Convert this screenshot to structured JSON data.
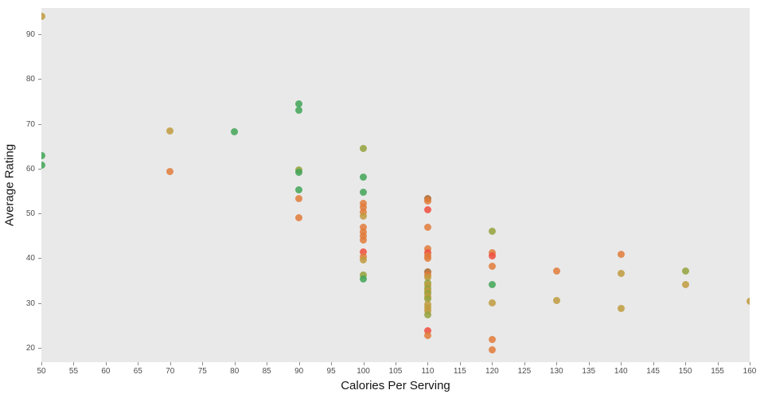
{
  "chart_data": {
    "type": "scatter",
    "title": "",
    "xlabel": "Calories Per Serving",
    "ylabel": "Average Rating",
    "xlim": [
      50,
      160
    ],
    "ylim": [
      16.8,
      95.9
    ],
    "xticks": [
      50,
      55,
      60,
      65,
      70,
      75,
      80,
      85,
      90,
      95,
      100,
      105,
      110,
      115,
      120,
      125,
      130,
      135,
      140,
      145,
      150,
      155,
      160
    ],
    "yticks": [
      20,
      30,
      40,
      50,
      60,
      70,
      80,
      90
    ],
    "grid": false,
    "legend": "none",
    "plot_background": "#e9e9e9",
    "figure_background": "#ffffff",
    "colors": {
      "green": "#41a556",
      "orange": "#e07b3a",
      "tan": "#bf9b3e",
      "red": "#ef4e3e",
      "olive": "#94a23c",
      "brown": "#ab672c"
    },
    "points": [
      {
        "x": 50,
        "y": 94.0,
        "c": "tan"
      },
      {
        "x": 50,
        "y": 63.0,
        "c": "green"
      },
      {
        "x": 50,
        "y": 60.8,
        "c": "green"
      },
      {
        "x": 70,
        "y": 68.4,
        "c": "tan"
      },
      {
        "x": 70,
        "y": 59.4,
        "c": "orange"
      },
      {
        "x": 80,
        "y": 68.2,
        "c": "green"
      },
      {
        "x": 90,
        "y": 74.5,
        "c": "green"
      },
      {
        "x": 90,
        "y": 73.0,
        "c": "green"
      },
      {
        "x": 90,
        "y": 59.7,
        "c": "olive"
      },
      {
        "x": 90,
        "y": 59.2,
        "c": "green"
      },
      {
        "x": 90,
        "y": 55.3,
        "c": "green"
      },
      {
        "x": 90,
        "y": 53.3,
        "c": "orange"
      },
      {
        "x": 90,
        "y": 49.1,
        "c": "orange"
      },
      {
        "x": 100,
        "y": 64.5,
        "c": "olive"
      },
      {
        "x": 100,
        "y": 58.1,
        "c": "green"
      },
      {
        "x": 100,
        "y": 54.8,
        "c": "green"
      },
      {
        "x": 100,
        "y": 52.3,
        "c": "orange"
      },
      {
        "x": 100,
        "y": 51.3,
        "c": "orange"
      },
      {
        "x": 100,
        "y": 50.3,
        "c": "orange"
      },
      {
        "x": 100,
        "y": 49.5,
        "c": "tan"
      },
      {
        "x": 100,
        "y": 46.9,
        "c": "orange"
      },
      {
        "x": 100,
        "y": 45.8,
        "c": "orange"
      },
      {
        "x": 100,
        "y": 44.9,
        "c": "orange"
      },
      {
        "x": 100,
        "y": 44.0,
        "c": "orange"
      },
      {
        "x": 100,
        "y": 41.5,
        "c": "red"
      },
      {
        "x": 100,
        "y": 40.4,
        "c": "orange"
      },
      {
        "x": 100,
        "y": 39.7,
        "c": "tan"
      },
      {
        "x": 100,
        "y": 36.2,
        "c": "olive"
      },
      {
        "x": 100,
        "y": 35.4,
        "c": "green"
      },
      {
        "x": 110,
        "y": 53.4,
        "c": "brown"
      },
      {
        "x": 110,
        "y": 52.8,
        "c": "orange"
      },
      {
        "x": 110,
        "y": 50.8,
        "c": "red"
      },
      {
        "x": 110,
        "y": 47.0,
        "c": "orange"
      },
      {
        "x": 110,
        "y": 42.2,
        "c": "orange"
      },
      {
        "x": 110,
        "y": 41.3,
        "c": "red"
      },
      {
        "x": 110,
        "y": 40.6,
        "c": "orange"
      },
      {
        "x": 110,
        "y": 40.0,
        "c": "orange"
      },
      {
        "x": 110,
        "y": 36.9,
        "c": "brown"
      },
      {
        "x": 110,
        "y": 36.3,
        "c": "orange"
      },
      {
        "x": 110,
        "y": 35.7,
        "c": "tan"
      },
      {
        "x": 110,
        "y": 34.5,
        "c": "olive"
      },
      {
        "x": 110,
        "y": 34.0,
        "c": "tan"
      },
      {
        "x": 110,
        "y": 33.3,
        "c": "olive"
      },
      {
        "x": 110,
        "y": 32.7,
        "c": "tan"
      },
      {
        "x": 110,
        "y": 32.1,
        "c": "olive"
      },
      {
        "x": 110,
        "y": 31.5,
        "c": "tan"
      },
      {
        "x": 110,
        "y": 30.9,
        "c": "olive"
      },
      {
        "x": 110,
        "y": 29.6,
        "c": "tan"
      },
      {
        "x": 110,
        "y": 29.0,
        "c": "tan"
      },
      {
        "x": 110,
        "y": 28.2,
        "c": "tan"
      },
      {
        "x": 110,
        "y": 27.3,
        "c": "olive"
      },
      {
        "x": 110,
        "y": 23.8,
        "c": "red"
      },
      {
        "x": 110,
        "y": 22.7,
        "c": "orange"
      },
      {
        "x": 120,
        "y": 46.0,
        "c": "olive"
      },
      {
        "x": 120,
        "y": 41.3,
        "c": "orange"
      },
      {
        "x": 120,
        "y": 40.6,
        "c": "red"
      },
      {
        "x": 120,
        "y": 38.2,
        "c": "orange"
      },
      {
        "x": 120,
        "y": 34.1,
        "c": "green"
      },
      {
        "x": 120,
        "y": 30.0,
        "c": "tan"
      },
      {
        "x": 120,
        "y": 21.9,
        "c": "orange"
      },
      {
        "x": 120,
        "y": 19.5,
        "c": "orange"
      },
      {
        "x": 130,
        "y": 37.1,
        "c": "orange"
      },
      {
        "x": 130,
        "y": 30.5,
        "c": "tan"
      },
      {
        "x": 140,
        "y": 40.8,
        "c": "orange"
      },
      {
        "x": 140,
        "y": 36.6,
        "c": "tan"
      },
      {
        "x": 140,
        "y": 28.8,
        "c": "tan"
      },
      {
        "x": 150,
        "y": 37.1,
        "c": "olive"
      },
      {
        "x": 150,
        "y": 34.1,
        "c": "tan"
      },
      {
        "x": 160,
        "y": 30.4,
        "c": "tan"
      }
    ]
  }
}
